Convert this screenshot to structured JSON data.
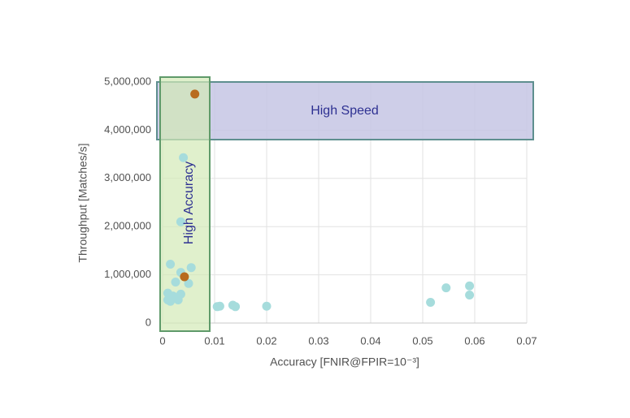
{
  "chart_data": {
    "type": "scatter",
    "x_label": "Accuracy [FNIR@FPIR=10⁻³]",
    "y_label": "Throughput [Matches/s]",
    "annotations": [
      "High Speed",
      "High Accuracy"
    ],
    "xlim": [
      0,
      0.07
    ],
    "xticks": [
      0,
      0.01,
      0.02,
      0.03,
      0.04,
      0.05,
      0.06,
      0.07
    ],
    "ylim": [
      0,
      5000000
    ],
    "yticks": [
      0,
      {
        "value": 1000000,
        "label": "1,000,000"
      },
      {
        "value": 2000000,
        "label": "2,000,000"
      },
      {
        "value": 3000000,
        "label": "3,000,000"
      },
      {
        "value": 4000000,
        "label": "4,000,000"
      },
      {
        "value": 5000000,
        "label": "5,000,000"
      }
    ],
    "grid": true,
    "series": [
      {
        "color": "#a6dcdc",
        "x": [
          0.0015,
          0.0055,
          0.0035,
          0.004,
          0.0035,
          0.0025,
          0.005,
          0.001,
          0.002,
          0.0035,
          0.001,
          0.0015,
          0.003,
          0.0105,
          0.011,
          0.0135,
          0.014,
          0.02,
          0.0515,
          0.0545,
          0.059,
          0.059
        ],
        "values": [
          1220000,
          1150000,
          2100000,
          3430000,
          1050000,
          850000,
          820000,
          620000,
          560000,
          600000,
          480000,
          450000,
          480000,
          340000,
          350000,
          370000,
          340000,
          350000,
          430000,
          730000,
          770000,
          580000
        ]
      },
      {
        "color": "#b86b1e",
        "x": [
          0.0062,
          0.0042
        ],
        "values": [
          4750000,
          960000
        ]
      }
    ]
  }
}
